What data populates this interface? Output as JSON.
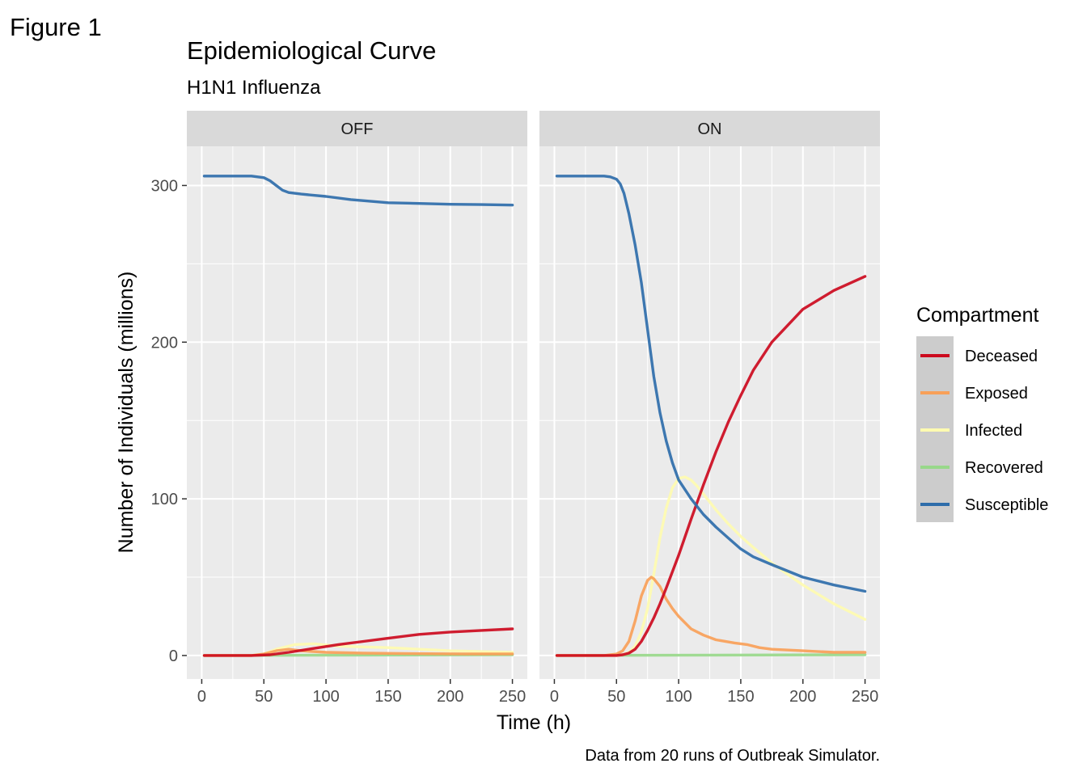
{
  "figure_label": "Figure 1",
  "chart_data": {
    "type": "line",
    "title": "Epidemiological Curve",
    "subtitle": "H1N1 Influenza",
    "xlabel": "Time (h)",
    "ylabel": "Number of Individuals (millions)",
    "caption": "Data from 20 runs of Outbreak Simulator.",
    "xlim": [
      0,
      250
    ],
    "ylim": [
      -15,
      325
    ],
    "x_ticks": [
      0,
      50,
      100,
      150,
      200,
      250
    ],
    "y_ticks": [
      0,
      100,
      200,
      300
    ],
    "grid": true,
    "legend": {
      "title": "Compartment",
      "position": "right",
      "entries": [
        {
          "name": "Deceased",
          "color": "#cc0a1e"
        },
        {
          "name": "Exposed",
          "color": "#f8a058"
        },
        {
          "name": "Infected",
          "color": "#fefbb0"
        },
        {
          "name": "Recovered",
          "color": "#98d88a"
        },
        {
          "name": "Susceptible",
          "color": "#2e6daa"
        }
      ]
    },
    "panels": [
      {
        "label": "OFF",
        "series": [
          {
            "name": "Susceptible",
            "x": [
              2,
              20,
              40,
              50,
              55,
              60,
              65,
              70,
              80,
              100,
              120,
              150,
              175,
              200,
              225,
              250
            ],
            "values": [
              306,
              306,
              306,
              305,
              303,
              300,
              297,
              295.5,
              294.5,
              293,
              291,
              289,
              288.5,
              288,
              287.8,
              287.5
            ]
          },
          {
            "name": "Deceased",
            "x": [
              2,
              40,
              55,
              70,
              90,
              110,
              130,
              150,
              175,
              200,
              225,
              250
            ],
            "values": [
              0,
              0,
              0.5,
              2,
              4.5,
              7,
              9,
              11,
              13.5,
              15,
              16,
              17
            ]
          },
          {
            "name": "Exposed",
            "x": [
              2,
              40,
              50,
              60,
              70,
              80,
              100,
              130,
              170,
              210,
              250
            ],
            "values": [
              0,
              0,
              1,
              3,
              4,
              3,
              2,
              1.5,
              1.2,
              1,
              1
            ]
          },
          {
            "name": "Infected",
            "x": [
              2,
              40,
              50,
              60,
              75,
              90,
              110,
              130,
              150,
              175,
              200,
              225,
              250
            ],
            "values": [
              0,
              0,
              1,
              4,
              7,
              7.5,
              6,
              5.5,
              5,
              4,
              3,
              2.5,
              2
            ]
          },
          {
            "name": "Recovered",
            "x": [
              2,
              250
            ],
            "values": [
              0,
              0.5
            ]
          }
        ]
      },
      {
        "label": "ON",
        "series": [
          {
            "name": "Susceptible",
            "x": [
              2,
              20,
              40,
              45,
              50,
              53,
              56,
              60,
              65,
              70,
              75,
              80,
              85,
              90,
              95,
              100,
              110,
              120,
              130,
              140,
              150,
              160,
              175,
              200,
              225,
              250
            ],
            "values": [
              306,
              306,
              306,
              305.5,
              304,
              301,
              295,
              282,
              262,
              238,
              208,
              178,
              155,
              137,
              123,
              112,
              100,
              90,
              82,
              75,
              68,
              63,
              58,
              50,
              45,
              41
            ]
          },
          {
            "name": "Deceased",
            "x": [
              2,
              50,
              55,
              60,
              65,
              70,
              75,
              80,
              85,
              90,
              100,
              110,
              120,
              130,
              140,
              150,
              160,
              175,
              200,
              225,
              250
            ],
            "values": [
              0,
              0,
              0.5,
              1.5,
              4,
              9,
              16,
              24,
              33,
              43,
              64,
              87,
              109,
              130,
              149,
              166,
              182,
              200,
              221,
              233,
              242
            ]
          },
          {
            "name": "Exposed",
            "x": [
              2,
              40,
              50,
              55,
              60,
              65,
              70,
              75,
              78,
              80,
              85,
              90,
              95,
              100,
              110,
              120,
              130,
              145,
              155,
              165,
              175,
              200,
              225,
              250
            ],
            "values": [
              0,
              0,
              1,
              3,
              9,
              22,
              38,
              48,
              50,
              49,
              44,
              36,
              30,
              25,
              17,
              13,
              10,
              8,
              7,
              5,
              4,
              3,
              2,
              2
            ]
          },
          {
            "name": "Infected",
            "x": [
              2,
              50,
              55,
              60,
              65,
              70,
              75,
              80,
              85,
              90,
              95,
              100,
              105,
              110,
              115,
              120,
              130,
              140,
              150,
              160,
              175,
              200,
              225,
              250
            ],
            "values": [
              0,
              0,
              0.5,
              2,
              6,
              15,
              30,
              52,
              75,
              94,
              107,
              113,
              114,
              112,
              108,
              103,
              93,
              84,
              76,
              69,
              59,
              45,
              33,
              23
            ]
          },
          {
            "name": "Recovered",
            "x": [
              2,
              250
            ],
            "values": [
              0,
              0.5
            ]
          }
        ]
      }
    ]
  }
}
